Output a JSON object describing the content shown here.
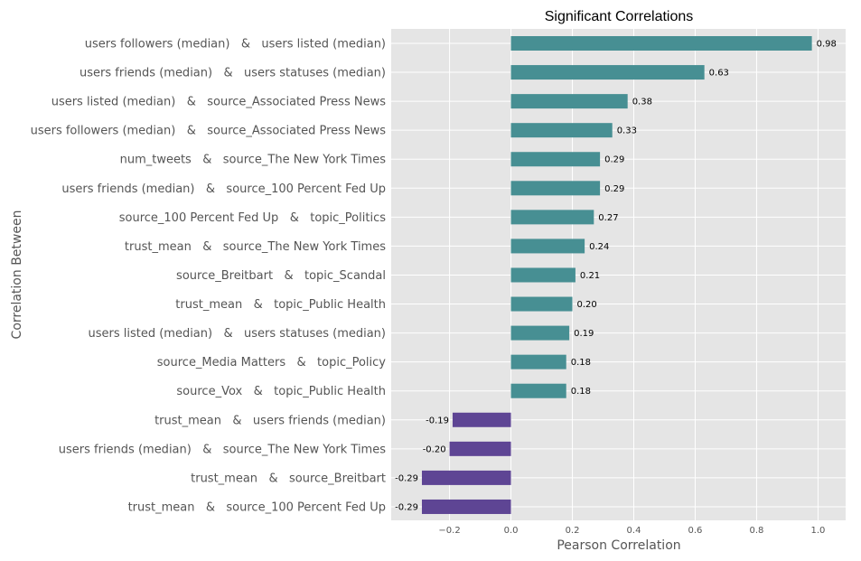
{
  "colors": {
    "plot_background": "#e5e5e5",
    "grid": "#ffffff",
    "positive_bar": "#478f93",
    "negative_bar": "#5e4594",
    "label_text": "#555555"
  },
  "chart_data": {
    "type": "bar",
    "orientation": "horizontal",
    "title": "Significant Correlations",
    "xlabel": "Pearson Correlation",
    "ylabel": "Correlation Between",
    "xlim": [
      -0.39,
      1.09
    ],
    "grid": true,
    "x_ticks": [
      -0.2,
      0.0,
      0.2,
      0.4,
      0.6,
      0.8,
      1.0
    ],
    "x_tick_labels": [
      "−0.2",
      "0.0",
      "0.2",
      "0.4",
      "0.6",
      "0.8",
      "1.0"
    ],
    "categories": [
      "users followers (median)   &   users listed (median)",
      "users friends (median)   &   users statuses (median)",
      "users listed (median)   &   source_Associated Press News",
      "users followers (median)   &   source_Associated Press News",
      "num_tweets   &   source_The New York Times",
      "users friends (median)   &   source_100 Percent Fed Up",
      "source_100 Percent Fed Up   &   topic_Politics",
      "trust_mean   &   source_The New York Times",
      "source_Breitbart   &   topic_Scandal",
      "trust_mean   &   topic_Public Health",
      "users listed (median)   &   users statuses (median)",
      "source_Media Matters   &   topic_Policy",
      "source_Vox   &   topic_Public Health",
      "trust_mean   &   users friends (median)",
      "users friends (median)   &   source_The New York Times",
      "trust_mean   &   source_Breitbart",
      "trust_mean   &   source_100 Percent Fed Up"
    ],
    "values": [
      0.98,
      0.63,
      0.38,
      0.33,
      0.29,
      0.29,
      0.27,
      0.24,
      0.21,
      0.2,
      0.19,
      0.18,
      0.18,
      -0.19,
      -0.2,
      -0.29,
      -0.29
    ],
    "value_labels": [
      "0.98",
      "0.63",
      "0.38",
      "0.33",
      "0.29",
      "0.29",
      "0.27",
      "0.24",
      "0.21",
      "0.20",
      "0.19",
      "0.18",
      "0.18",
      "-0.19",
      "-0.20",
      "-0.29",
      "-0.29"
    ]
  }
}
